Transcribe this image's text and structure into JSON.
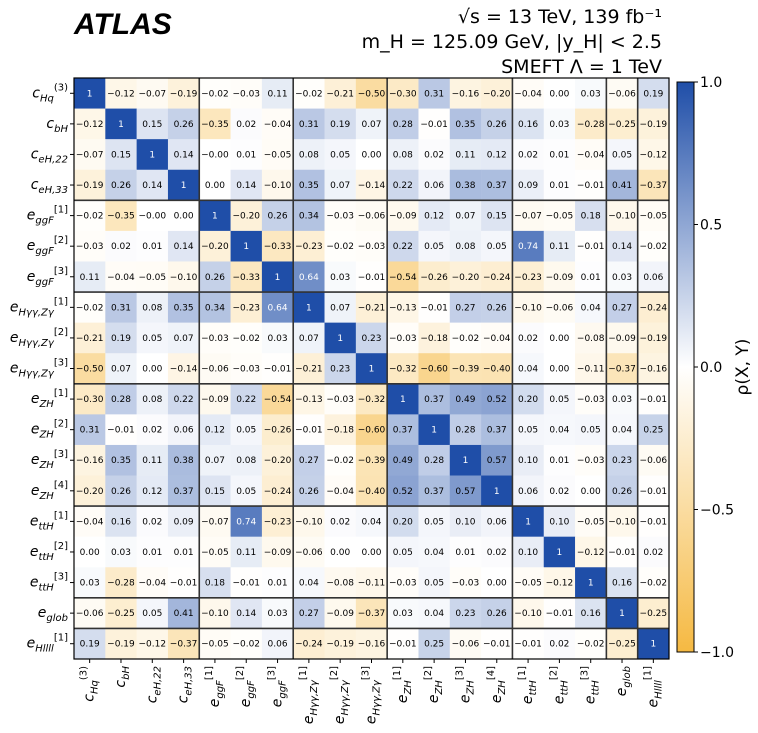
{
  "experiment": "ATLAS",
  "info": {
    "line1": "√s = 13 TeV, 139 fb⁻¹",
    "line2": "m_H = 125.09 GeV, |y_H| < 2.5",
    "line3": "SMEFT Λ = 1 TeV"
  },
  "colors": {
    "pos": "#1f4ea8",
    "neg": "#f5b942",
    "mid": "#ffffff",
    "grid": "#555555"
  },
  "chart_data": {
    "type": "heatmap",
    "labels": [
      "c_Hq^(3)",
      "c_bH",
      "c_eH,22",
      "c_eH,33",
      "e_ggF^[1]",
      "e_ggF^[2]",
      "e_ggF^[3]",
      "e_Hγγ,Zγ^[1]",
      "e_Hγγ,Zγ^[2]",
      "e_Hγγ,Zγ^[3]",
      "e_ZH^[1]",
      "e_ZH^[2]",
      "e_ZH^[3]",
      "e_ZH^[4]",
      "e_ttH^[1]",
      "e_ttH^[2]",
      "e_ttH^[3]",
      "e_glob",
      "e_Hllll^[1]"
    ],
    "label_parts": [
      {
        "b": "c",
        "sub": "Hq",
        "sup": "(3)"
      },
      {
        "b": "c",
        "sub": "bH",
        "sup": ""
      },
      {
        "b": "c",
        "sub": "eH,22",
        "sup": ""
      },
      {
        "b": "c",
        "sub": "eH,33",
        "sup": ""
      },
      {
        "b": "e",
        "sub": "ggF",
        "sup": "[1]"
      },
      {
        "b": "e",
        "sub": "ggF",
        "sup": "[2]"
      },
      {
        "b": "e",
        "sub": "ggF",
        "sup": "[3]"
      },
      {
        "b": "e",
        "sub": "Hγγ,Zγ",
        "sup": "[1]"
      },
      {
        "b": "e",
        "sub": "Hγγ,Zγ",
        "sup": "[2]"
      },
      {
        "b": "e",
        "sub": "Hγγ,Zγ",
        "sup": "[3]"
      },
      {
        "b": "e",
        "sub": "ZH",
        "sup": "[1]"
      },
      {
        "b": "e",
        "sub": "ZH",
        "sup": "[2]"
      },
      {
        "b": "e",
        "sub": "ZH",
        "sup": "[3]"
      },
      {
        "b": "e",
        "sub": "ZH",
        "sup": "[4]"
      },
      {
        "b": "e",
        "sub": "ttH",
        "sup": "[1]"
      },
      {
        "b": "e",
        "sub": "ttH",
        "sup": "[2]"
      },
      {
        "b": "e",
        "sub": "ttH",
        "sup": "[3]"
      },
      {
        "b": "e",
        "sub": "glob",
        "sup": ""
      },
      {
        "b": "e",
        "sub": "Hllll",
        "sup": "[1]"
      }
    ],
    "group_boundaries": [
      4,
      7,
      10,
      14,
      17,
      18
    ],
    "matrix": [
      [
        "1",
        "−0.12",
        "−0.07",
        "−0.19",
        "−0.02",
        "−0.03",
        "0.11",
        "−0.02",
        "−0.21",
        "−0.50",
        "−0.30",
        "0.31",
        "−0.16",
        "−0.20",
        "−0.04",
        "0.00",
        "0.03",
        "−0.06",
        "0.19"
      ],
      [
        "−0.12",
        "1",
        "0.15",
        "0.26",
        "−0.35",
        "0.02",
        "−0.04",
        "0.31",
        "0.19",
        "0.07",
        "0.28",
        "−0.01",
        "0.35",
        "0.26",
        "0.16",
        "0.03",
        "−0.28",
        "−0.25",
        "−0.19"
      ],
      [
        "−0.07",
        "0.15",
        "1",
        "0.14",
        "−0.00",
        "0.01",
        "−0.05",
        "0.08",
        "0.05",
        "0.00",
        "0.08",
        "0.02",
        "0.11",
        "0.12",
        "0.02",
        "0.01",
        "−0.04",
        "0.05",
        "−0.12"
      ],
      [
        "−0.19",
        "0.26",
        "0.14",
        "1",
        "0.00",
        "0.14",
        "−0.10",
        "0.35",
        "0.07",
        "−0.14",
        "0.22",
        "0.06",
        "0.38",
        "0.37",
        "0.09",
        "0.01",
        "−0.01",
        "0.41",
        "−0.37"
      ],
      [
        "−0.02",
        "−0.35",
        "−0.00",
        "0.00",
        "1",
        "−0.20",
        "0.26",
        "0.34",
        "−0.03",
        "−0.06",
        "−0.09",
        "0.12",
        "0.07",
        "0.15",
        "−0.07",
        "−0.05",
        "0.18",
        "−0.10",
        "−0.05"
      ],
      [
        "−0.03",
        "0.02",
        "0.01",
        "0.14",
        "−0.20",
        "1",
        "−0.33",
        "−0.23",
        "−0.02",
        "−0.03",
        "0.22",
        "0.05",
        "0.08",
        "0.05",
        "0.74",
        "0.11",
        "−0.01",
        "0.14",
        "−0.02"
      ],
      [
        "0.11",
        "−0.04",
        "−0.05",
        "−0.10",
        "0.26",
        "−0.33",
        "1",
        "0.64",
        "0.03",
        "−0.01",
        "−0.54",
        "−0.26",
        "−0.20",
        "−0.24",
        "−0.23",
        "−0.09",
        "0.01",
        "0.03",
        "0.06"
      ],
      [
        "−0.02",
        "0.31",
        "0.08",
        "0.35",
        "0.34",
        "−0.23",
        "0.64",
        "1",
        "0.07",
        "−0.21",
        "−0.13",
        "−0.01",
        "0.27",
        "0.26",
        "−0.10",
        "−0.06",
        "0.04",
        "0.27",
        "−0.24"
      ],
      [
        "−0.21",
        "0.19",
        "0.05",
        "0.07",
        "−0.03",
        "−0.02",
        "0.03",
        "0.07",
        "1",
        "0.23",
        "−0.03",
        "−0.18",
        "−0.02",
        "−0.04",
        "0.02",
        "0.00",
        "−0.08",
        "−0.09",
        "−0.19"
      ],
      [
        "−0.50",
        "0.07",
        "0.00",
        "−0.14",
        "−0.06",
        "−0.03",
        "−0.01",
        "−0.21",
        "0.23",
        "1",
        "−0.32",
        "−0.60",
        "−0.39",
        "−0.40",
        "0.04",
        "0.00",
        "−0.11",
        "−0.37",
        "−0.16"
      ],
      [
        "−0.30",
        "0.28",
        "0.08",
        "0.22",
        "−0.09",
        "0.22",
        "−0.54",
        "−0.13",
        "−0.03",
        "−0.32",
        "1",
        "0.37",
        "0.49",
        "0.52",
        "0.20",
        "0.05",
        "−0.03",
        "0.03",
        "−0.01"
      ],
      [
        "0.31",
        "−0.01",
        "0.02",
        "0.06",
        "0.12",
        "0.05",
        "−0.26",
        "−0.01",
        "−0.18",
        "−0.60",
        "0.37",
        "1",
        "0.28",
        "0.37",
        "0.05",
        "0.04",
        "0.05",
        "0.04",
        "0.25"
      ],
      [
        "−0.16",
        "0.35",
        "0.11",
        "0.38",
        "0.07",
        "0.08",
        "−0.20",
        "0.27",
        "−0.02",
        "−0.39",
        "0.49",
        "0.28",
        "1",
        "0.57",
        "0.10",
        "0.01",
        "−0.03",
        "0.23",
        "−0.06"
      ],
      [
        "−0.20",
        "0.26",
        "0.12",
        "0.37",
        "0.15",
        "0.05",
        "−0.24",
        "0.26",
        "−0.04",
        "−0.40",
        "0.52",
        "0.37",
        "0.57",
        "1",
        "0.06",
        "0.02",
        "0.00",
        "0.26",
        "−0.01"
      ],
      [
        "−0.04",
        "0.16",
        "0.02",
        "0.09",
        "−0.07",
        "0.74",
        "−0.23",
        "−0.10",
        "0.02",
        "0.04",
        "0.20",
        "0.05",
        "0.10",
        "0.06",
        "1",
        "0.10",
        "−0.05",
        "−0.10",
        "−0.01"
      ],
      [
        "0.00",
        "0.03",
        "0.01",
        "0.01",
        "−0.05",
        "0.11",
        "−0.09",
        "−0.06",
        "0.00",
        "0.00",
        "0.05",
        "0.04",
        "0.01",
        "0.02",
        "0.10",
        "1",
        "−0.12",
        "−0.01",
        "0.02"
      ],
      [
        "0.03",
        "−0.28",
        "−0.04",
        "−0.01",
        "0.18",
        "−0.01",
        "0.01",
        "0.04",
        "−0.08",
        "−0.11",
        "−0.03",
        "0.05",
        "−0.03",
        "0.00",
        "−0.05",
        "−0.12",
        "1",
        "0.16",
        "−0.02"
      ],
      [
        "−0.06",
        "−0.25",
        "0.05",
        "0.41",
        "−0.10",
        "0.14",
        "0.03",
        "0.27",
        "−0.09",
        "−0.37",
        "0.03",
        "0.04",
        "0.23",
        "0.26",
        "−0.10",
        "−0.01",
        "0.16",
        "1",
        "−0.25"
      ],
      [
        "0.19",
        "−0.19",
        "−0.12",
        "−0.37",
        "−0.05",
        "−0.02",
        "0.06",
        "−0.24",
        "−0.19",
        "−0.16",
        "−0.01",
        "0.25",
        "−0.06",
        "−0.01",
        "−0.01",
        "0.02",
        "−0.02",
        "−0.25",
        "1"
      ]
    ],
    "colorbar": {
      "label": "ρ(X, Y)",
      "range": [
        -1.0,
        1.0
      ],
      "ticks": [
        "1.0",
        "0.5",
        "0.0",
        "−0.5",
        "−1.0"
      ]
    }
  }
}
